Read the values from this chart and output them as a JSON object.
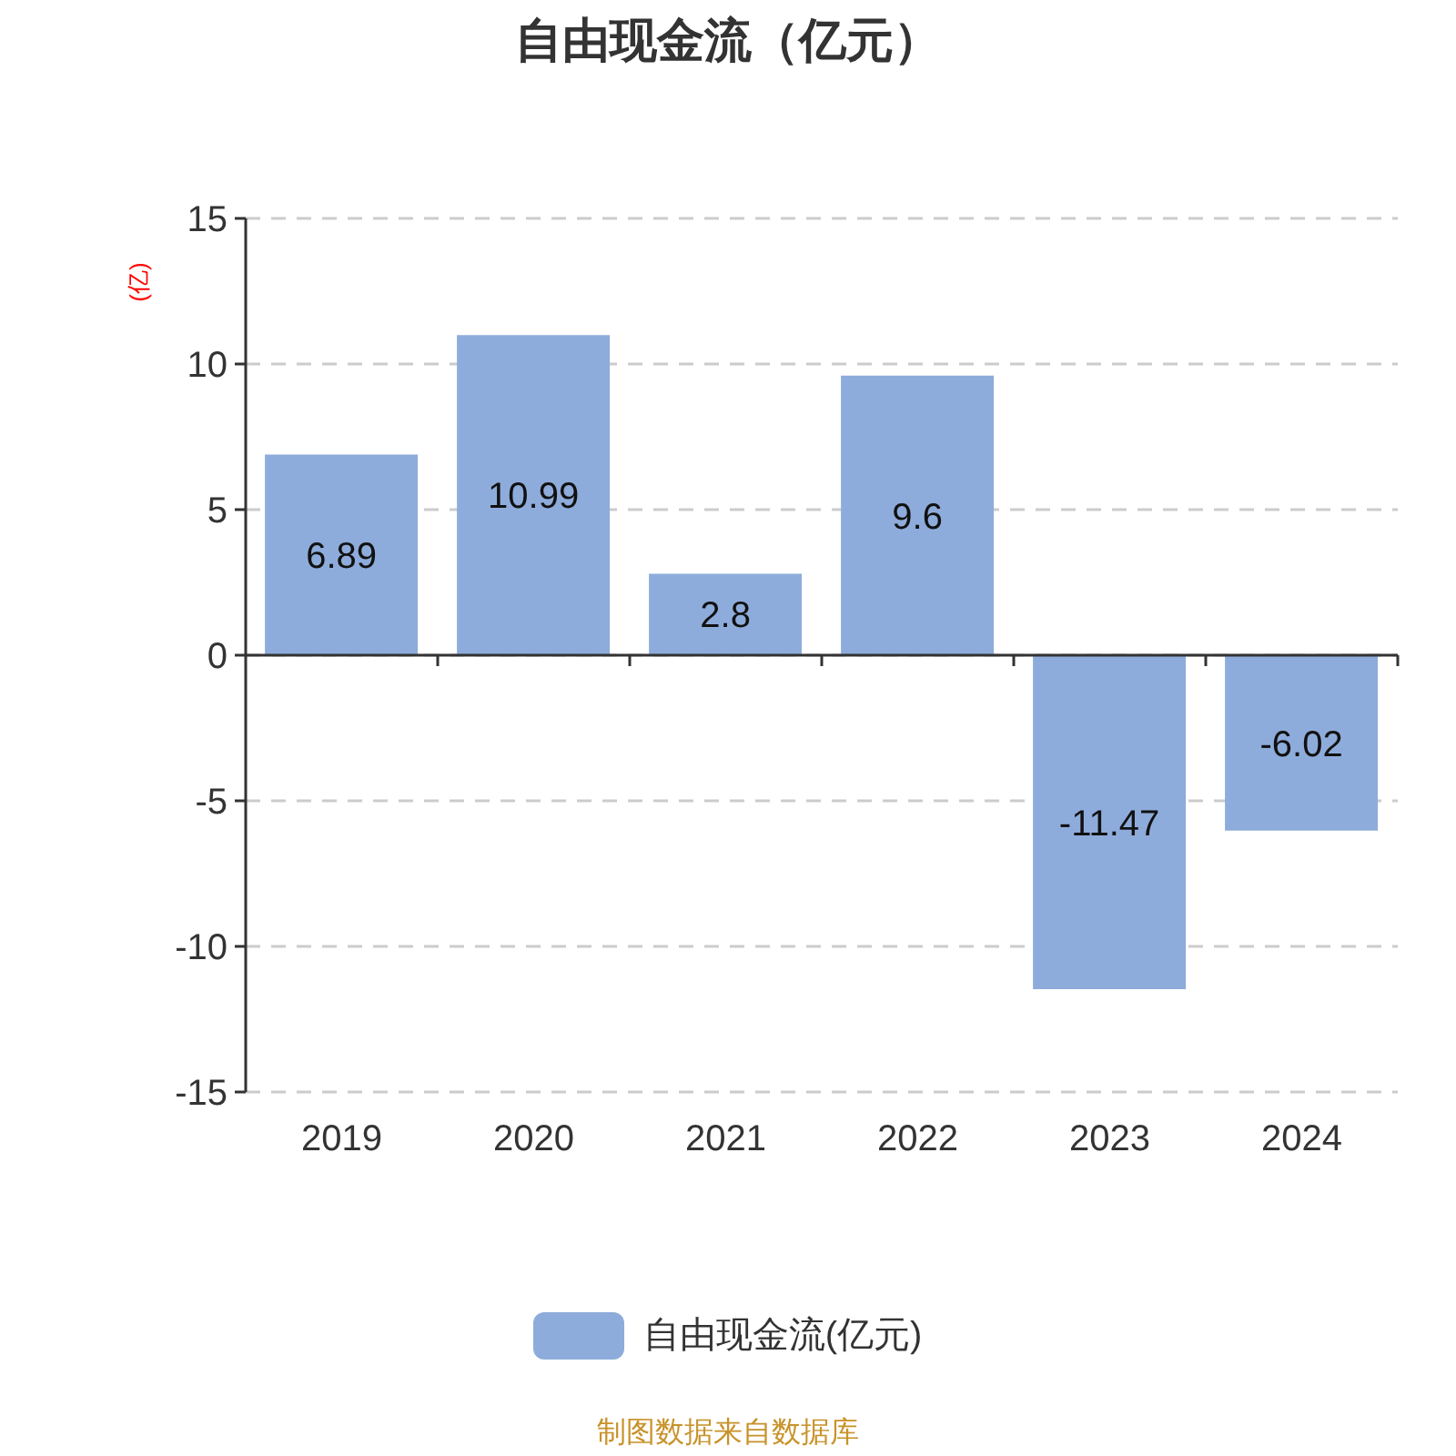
{
  "chart_data": {
    "type": "bar",
    "title": "自由现金流（亿元）",
    "ylabel": "(亿)",
    "categories": [
      "2019",
      "2020",
      "2021",
      "2022",
      "2023",
      "2024"
    ],
    "series": [
      {
        "name": "自由现金流(亿元)",
        "color": "#8eacdb",
        "values": [
          6.89,
          10.99,
          2.8,
          9.6,
          -11.47,
          -6.02
        ]
      }
    ],
    "ylim": [
      -15,
      15
    ],
    "yticks": [
      -15,
      -10,
      -5,
      0,
      5,
      10,
      15
    ],
    "grid": "y",
    "legend": "bottom",
    "data_labels": true,
    "annotations": [
      "制图数据来自数据库"
    ]
  }
}
